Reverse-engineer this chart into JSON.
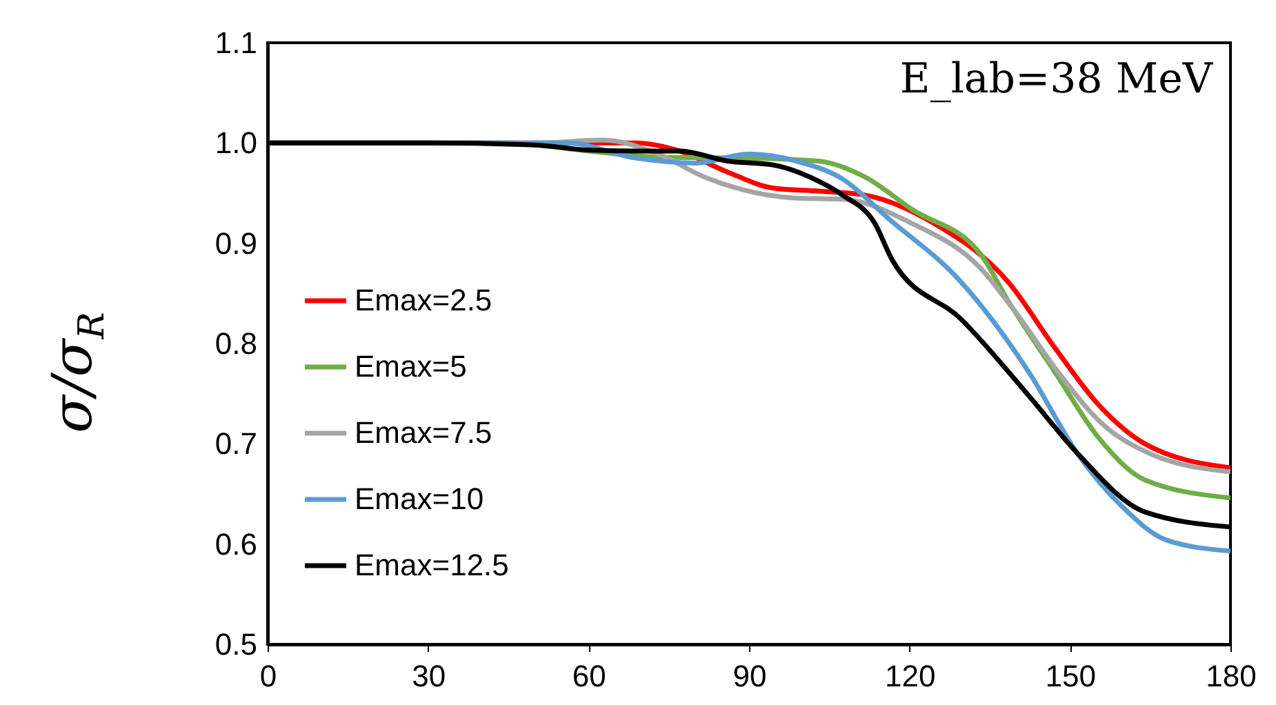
{
  "chart_data": {
    "type": "line",
    "ylabel": "σ/σ$_{R}$",
    "annotations": [
      "E_lab=38 MeV"
    ],
    "xlim": [
      0,
      180
    ],
    "xticks": [
      0,
      30,
      60,
      90,
      120,
      150,
      180
    ],
    "ylim": [
      0.5,
      1.1
    ],
    "yticks": [
      {
        "value": 0.5,
        "label": "0.5"
      },
      {
        "value": 0.6,
        "label": "0.6"
      },
      {
        "value": 0.7,
        "label": "0.7"
      },
      {
        "value": 0.8,
        "label": "0.8"
      },
      {
        "value": 0.9,
        "label": "0.9"
      },
      {
        "value": 1.0,
        "label": "1.0"
      },
      {
        "value": 1.1,
        "label": "1.1"
      }
    ],
    "grid": false,
    "legend": "left",
    "marker": "none",
    "line_style": "solid",
    "series": [
      {
        "name": "Emax=2.5",
        "color": "#ff0000",
        "x": [
          0,
          30,
          60,
          68.8,
          77,
          86,
          94.6,
          103,
          111.7,
          124.5,
          138.5,
          147,
          155.5,
          164,
          180
        ],
        "values": [
          1.0,
          1.0,
          1.0,
          1.0,
          0.992,
          0.971,
          0.955,
          0.952,
          0.948,
          0.92,
          0.861,
          0.797,
          0.738,
          0.7,
          0.676
        ]
      },
      {
        "name": "Emax=5",
        "color": "#70ad47",
        "x": [
          0,
          30,
          45,
          60,
          73,
          90,
          103,
          111.7,
          120.4,
          133.3,
          138.5,
          147,
          155.5,
          164,
          180
        ],
        "values": [
          1.0,
          1.0,
          1.0,
          0.992,
          0.986,
          0.985,
          0.982,
          0.966,
          0.934,
          0.889,
          0.842,
          0.773,
          0.705,
          0.664,
          0.646
        ]
      },
      {
        "name": "Emax=7.5",
        "color": "#a5a5a5",
        "x": [
          0,
          30,
          50,
          62.7,
          73,
          81.7,
          87.7,
          98.8,
          107.5,
          120.4,
          133.3,
          140,
          148,
          156,
          165,
          180
        ],
        "values": [
          1.0,
          1.0,
          1.0,
          1.003,
          0.989,
          0.966,
          0.955,
          0.945,
          0.944,
          0.92,
          0.875,
          0.83,
          0.77,
          0.72,
          0.69,
          0.672
        ]
      },
      {
        "name": "Emax=10",
        "color": "#5b9bd5",
        "x": [
          0,
          30,
          56,
          68.8,
          80,
          90,
          98.8,
          107.5,
          116,
          129.7,
          142.6,
          151.3,
          160,
          168,
          180
        ],
        "values": [
          1.0,
          1.0,
          1.0,
          0.985,
          0.98,
          0.989,
          0.982,
          0.964,
          0.925,
          0.861,
          0.769,
          0.691,
          0.636,
          0.604,
          0.593
        ]
      },
      {
        "name": "Emax=12.5",
        "color": "#000000",
        "x": [
          0,
          30,
          50,
          60,
          68.8,
          77,
          86,
          94.6,
          101.4,
          107.5,
          113.5,
          116.8,
          129.7,
          142.6,
          151.3,
          164,
          180
        ],
        "values": [
          1.0,
          1.0,
          0.998,
          0.993,
          0.992,
          0.992,
          0.982,
          0.978,
          0.966,
          0.948,
          0.92,
          0.883,
          0.824,
          0.746,
          0.691,
          0.632,
          0.617
        ]
      }
    ]
  }
}
